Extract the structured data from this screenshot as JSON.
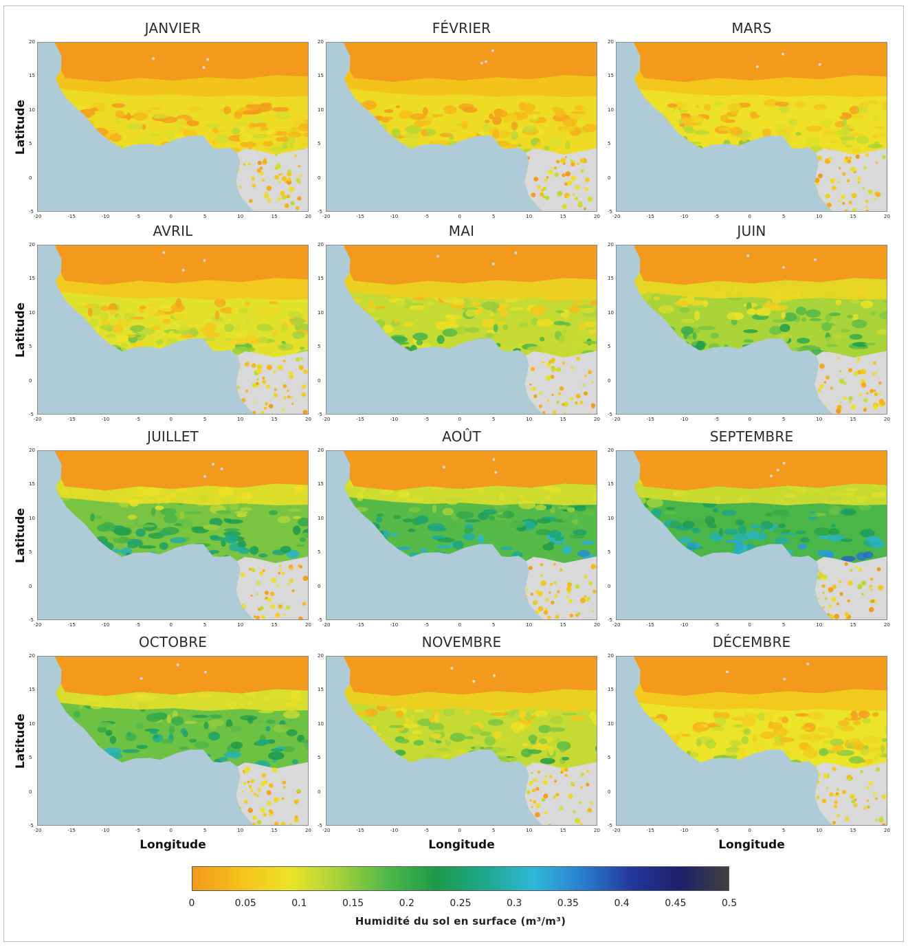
{
  "months": [
    "JANVIER",
    "FÉVRIER",
    "MARS",
    "AVRIL",
    "MAI",
    "JUIN",
    "JUILLET",
    "AOÛT",
    "SEPTEMBRE",
    "OCTOBRE",
    "NOVEMBRE",
    "DÉCEMBRE"
  ],
  "wetness": [
    0.15,
    0.15,
    0.2,
    0.3,
    0.45,
    0.6,
    0.8,
    0.95,
    1.0,
    0.85,
    0.45,
    0.25
  ],
  "axes": {
    "x_title": "Longitude",
    "y_title": "Latitude",
    "x_ticks": [
      "-20",
      "-15",
      "-10",
      "-5",
      "0",
      "5",
      "10",
      "15",
      "20"
    ],
    "y_ticks": [
      "20",
      "15",
      "10",
      "5",
      "0",
      "-5"
    ],
    "x_range": [
      -20,
      20
    ],
    "y_range": [
      -5,
      20
    ]
  },
  "colorbar": {
    "title": "Humidité du sol en surface (m³/m³)",
    "ticks": [
      "0",
      "0.05",
      "0.1",
      "0.15",
      "0.2",
      "0.25",
      "0.3",
      "0.35",
      "0.4",
      "0.45",
      "0.5"
    ],
    "stops": [
      "#f39a1c",
      "#f5c21a",
      "#ece428",
      "#a6d23a",
      "#4fb848",
      "#1c9a4a",
      "#1ea88c",
      "#2eb8d8",
      "#2a7fd0",
      "#23379c",
      "#1c1f6a",
      "#414141"
    ],
    "range": [
      0,
      0.5
    ]
  },
  "colors": {
    "ocean": "#afcbd8",
    "no_data": "#d9d9d9",
    "dry": "#f39a1c"
  }
}
